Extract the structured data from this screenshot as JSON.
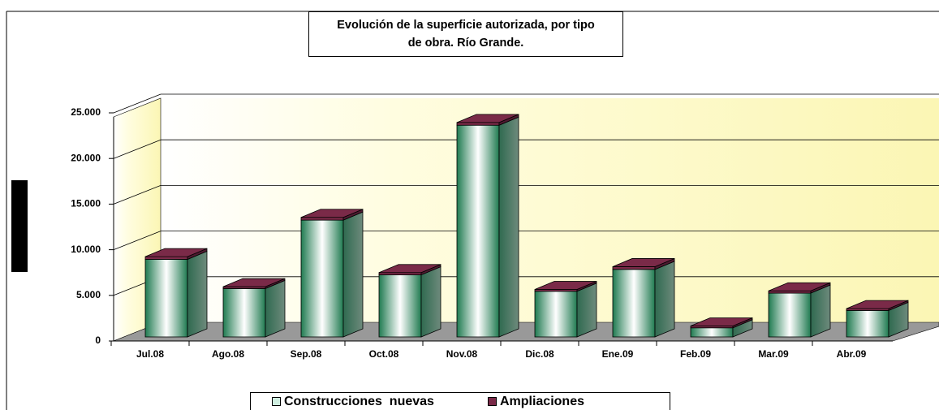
{
  "chart_data": {
    "type": "bar3d_stacked",
    "title": "Evolución de la superficie autorizada, por tipo de obra. Río Grande.",
    "categories": [
      "Jul.08",
      "Ago.08",
      "Sep.08",
      "Oct.08",
      "Nov.08",
      "Dic.08",
      "Ene.09",
      "Feb.09",
      "Mar.09",
      "Abr.09"
    ],
    "series": [
      {
        "name": "Construcciones  nuevas",
        "color": "#2e8b63",
        "values": [
          8500,
          5300,
          12800,
          6800,
          23200,
          5000,
          7400,
          1000,
          4800,
          2900
        ]
      },
      {
        "name": "Ampliaciones",
        "color": "#7a2a48",
        "values": [
          300,
          200,
          300,
          250,
          300,
          200,
          300,
          200,
          250,
          200
        ]
      }
    ],
    "ylim": [
      0,
      25000
    ],
    "yticks": [
      0,
      {
        "value": 5000,
        "label": "5.000"
      },
      {
        "value": 10000,
        "label": "10.000"
      },
      {
        "value": 15000,
        "label": "15.000"
      },
      {
        "value": 20000,
        "label": "20.000"
      },
      {
        "value": 25000,
        "label": "25.000"
      }
    ],
    "grid": true,
    "legend": "bottom"
  }
}
